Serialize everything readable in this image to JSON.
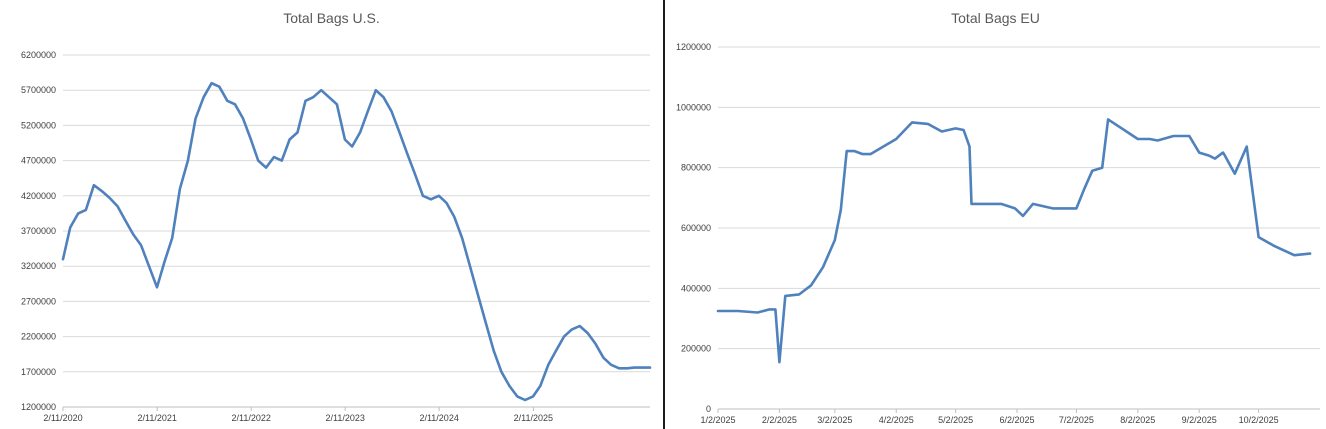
{
  "chart_data": [
    {
      "type": "line",
      "title": "Total Bags U.S.",
      "xlabel": "",
      "ylabel": "",
      "ylim": [
        1200000,
        6200000
      ],
      "xlim": [
        "2020-02-11",
        "2026-05-10"
      ],
      "yticks": [
        "1200000",
        "1700000",
        "2200000",
        "2700000",
        "3200000",
        "3700000",
        "4200000",
        "4700000",
        "5200000",
        "5700000",
        "6200000"
      ],
      "xticks": [
        "2/11/2020",
        "2/11/2021",
        "2/11/2022",
        "2/11/2023",
        "2/11/2024",
        "2/11/2025"
      ],
      "grid": "horizontal",
      "legend": "none",
      "color": "#4f81bd",
      "series": [
        {
          "x": [
            "2020-02-11",
            "2020-03-10",
            "2020-04-10",
            "2020-05-10",
            "2020-06-10",
            "2020-07-10",
            "2020-08-10",
            "2020-09-10",
            "2020-10-10",
            "2020-11-10",
            "2020-12-10",
            "2021-01-10",
            "2021-02-10",
            "2021-03-10",
            "2021-04-10",
            "2021-05-10",
            "2021-06-10",
            "2021-07-10",
            "2021-08-10",
            "2021-09-10",
            "2021-10-10",
            "2021-11-10",
            "2021-12-10",
            "2022-01-10",
            "2022-02-10",
            "2022-03-10",
            "2022-04-10",
            "2022-05-10",
            "2022-06-10",
            "2022-07-10",
            "2022-08-10",
            "2022-09-10",
            "2022-10-10",
            "2022-11-10",
            "2022-12-10",
            "2023-01-10",
            "2023-02-10",
            "2023-03-10",
            "2023-04-10",
            "2023-05-10",
            "2023-06-10",
            "2023-07-10",
            "2023-08-10",
            "2023-09-10",
            "2023-10-10",
            "2023-11-10",
            "2023-12-10",
            "2024-01-10",
            "2024-02-10",
            "2024-03-10",
            "2024-04-10",
            "2024-05-10",
            "2024-06-10",
            "2024-07-10",
            "2024-08-10",
            "2024-09-10",
            "2024-10-10",
            "2024-11-10",
            "2024-12-10",
            "2025-01-10",
            "2025-02-10",
            "2025-03-10",
            "2025-04-10",
            "2025-05-10",
            "2025-06-10",
            "2025-07-10",
            "2025-08-10",
            "2025-09-10",
            "2025-10-10",
            "2025-11-10",
            "2025-12-10",
            "2026-01-10",
            "2026-02-10",
            "2026-03-10",
            "2026-04-10",
            "2026-05-10"
          ],
          "y": [
            3300000,
            3750000,
            3950000,
            4000000,
            4350000,
            4270000,
            4170000,
            4050000,
            3850000,
            3650000,
            3500000,
            3200000,
            2900000,
            3250000,
            3600000,
            4300000,
            4700000,
            5300000,
            5600000,
            5800000,
            5750000,
            5550000,
            5500000,
            5300000,
            5000000,
            4700000,
            4600000,
            4750000,
            4700000,
            5000000,
            5100000,
            5550000,
            5600000,
            5700000,
            5600000,
            5500000,
            5000000,
            4900000,
            5100000,
            5400000,
            5700000,
            5600000,
            5400000,
            5100000,
            4800000,
            4500000,
            4200000,
            4150000,
            4200000,
            4100000,
            3900000,
            3600000,
            3200000,
            2800000,
            2400000,
            2000000,
            1700000,
            1500000,
            1350000,
            1300000,
            1350000,
            1500000,
            1800000,
            2000000,
            2200000,
            2300000,
            2350000,
            2250000,
            2100000,
            1900000,
            1800000,
            1750000,
            1750000,
            1760000,
            1760000,
            1760000
          ]
        }
      ]
    },
    {
      "type": "line",
      "title": "Total Bags EU",
      "xlabel": "",
      "ylabel": "",
      "ylim": [
        0,
        1200000
      ],
      "xlim": [
        "2025-01-02",
        "2025-11-02"
      ],
      "yticks": [
        "0",
        "200000",
        "400000",
        "600000",
        "800000",
        "1000000",
        "1200000"
      ],
      "xticks": [
        "1/2/2025",
        "2/2/2025",
        "3/2/2025",
        "4/2/2025",
        "5/2/2025",
        "6/2/2025",
        "7/2/2025",
        "8/2/2025",
        "9/2/2025",
        "10/2/2025"
      ],
      "grid": "horizontal",
      "legend": "none",
      "color": "#4f81bd",
      "series": [
        {
          "x": [
            "2025-01-02",
            "2025-01-12",
            "2025-01-22",
            "2025-01-28",
            "2025-01-31",
            "2025-02-02",
            "2025-02-05",
            "2025-02-12",
            "2025-02-18",
            "2025-02-24",
            "2025-03-02",
            "2025-03-05",
            "2025-03-08",
            "2025-03-12",
            "2025-03-16",
            "2025-03-20",
            "2025-04-02",
            "2025-04-10",
            "2025-04-18",
            "2025-04-25",
            "2025-05-02",
            "2025-05-06",
            "2025-05-09",
            "2025-05-10",
            "2025-05-20",
            "2025-05-25",
            "2025-06-01",
            "2025-06-05",
            "2025-06-10",
            "2025-06-20",
            "2025-06-25",
            "2025-07-02",
            "2025-07-06",
            "2025-07-10",
            "2025-07-15",
            "2025-07-18",
            "2025-08-02",
            "2025-08-08",
            "2025-08-12",
            "2025-08-20",
            "2025-08-28",
            "2025-09-02",
            "2025-09-07",
            "2025-09-10",
            "2025-09-14",
            "2025-09-15",
            "2025-09-20",
            "2025-09-26",
            "2025-10-02",
            "2025-10-10",
            "2025-10-20",
            "2025-10-28"
          ],
          "y": [
            325000,
            325000,
            320000,
            330000,
            330000,
            155000,
            375000,
            380000,
            410000,
            470000,
            560000,
            660000,
            855000,
            855000,
            845000,
            845000,
            895000,
            950000,
            945000,
            920000,
            930000,
            925000,
            870000,
            680000,
            680000,
            680000,
            665000,
            640000,
            680000,
            665000,
            665000,
            665000,
            730000,
            790000,
            800000,
            960000,
            895000,
            895000,
            890000,
            905000,
            905000,
            850000,
            840000,
            830000,
            850000,
            840000,
            780000,
            870000,
            570000,
            540000,
            510000,
            515000
          ]
        }
      ]
    }
  ]
}
